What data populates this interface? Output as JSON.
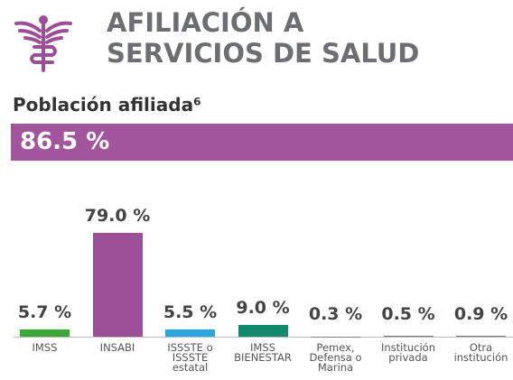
{
  "chart_data": {
    "type": "bar",
    "title": "AFILIACIÓN A SERVICIOS DE SALUD",
    "subtitle": "Población afiliada⁶",
    "headline": "86.5 %",
    "categories": [
      "IMSS",
      "INSABI",
      "ISSSTE o ISSSTE estatal",
      "IMSS BIENESTAR",
      "Pemex, Defensa o Marina",
      "Institución privada",
      "Otra institución"
    ],
    "values": [
      5.7,
      79.0,
      5.5,
      9.0,
      0.3,
      0.5,
      0.9
    ],
    "value_labels": [
      "5.7 %",
      "79.0 %",
      "5.5 %",
      "9.0 %",
      "0.3 %",
      "0.5 %",
      "0.9 %"
    ],
    "colors": [
      "#3aa935",
      "#9c4f96",
      "#2ba6de",
      "#10896c",
      "#7a7a7a",
      "#7a7a7a",
      "#7a7a7a"
    ],
    "ylim": [
      0,
      79
    ]
  }
}
